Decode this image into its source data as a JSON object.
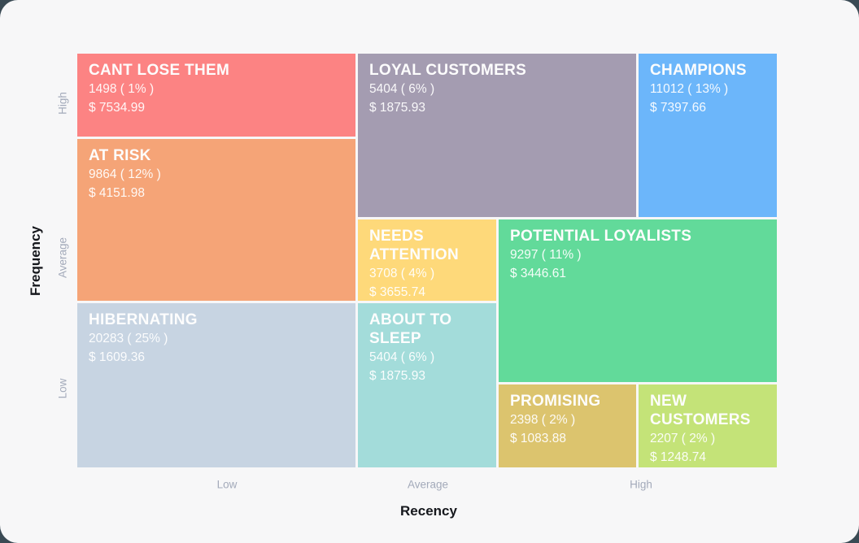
{
  "axes": {
    "y_title": "Frequency",
    "x_title": "Recency",
    "y_ticks": [
      "High",
      "Average",
      "Low"
    ],
    "x_ticks": [
      "Low",
      "Average",
      "High"
    ]
  },
  "chart_data": {
    "type": "heatmap",
    "subtype": "rfm-segment-grid",
    "xlabel": "Recency",
    "ylabel": "Frequency",
    "x_ticks": [
      "Low",
      "Average",
      "High"
    ],
    "y_ticks": [
      "High",
      "Average",
      "Low"
    ],
    "grid": "off",
    "legend": "none",
    "segments": [
      {
        "name": "CANT LOSE THEM",
        "count": 1498,
        "percent": 1,
        "monetary": 7534.99,
        "count_text": "1498 ( 1% )",
        "value_text": "$ 7534.99",
        "color": "#fc8383",
        "recency": "Low",
        "frequency": "High"
      },
      {
        "name": "LOYAL CUSTOMERS",
        "count": 5404,
        "percent": 6,
        "monetary": 1875.93,
        "count_text": "5404 ( 6% )",
        "value_text": "$ 1875.93",
        "color": "#a49cb1",
        "recency": "Average",
        "frequency": "High"
      },
      {
        "name": "CHAMPIONS",
        "count": 11012,
        "percent": 13,
        "monetary": 7397.66,
        "count_text": "11012 ( 13% )",
        "value_text": "$ 7397.66",
        "color": "#6cb6fa",
        "recency": "High",
        "frequency": "High"
      },
      {
        "name": "AT RISK",
        "count": 9864,
        "percent": 12,
        "monetary": 4151.98,
        "count_text": "9864 ( 12% )",
        "value_text": "$ 4151.98",
        "color": "#f5a477",
        "recency": "Low",
        "frequency": "Average"
      },
      {
        "name": "NEEDS ATTENTION",
        "count": 3708,
        "percent": 4,
        "monetary": 3655.74,
        "count_text": "3708 ( 4% )",
        "value_text": "$ 3655.74",
        "color": "#fed97a",
        "recency": "Average",
        "frequency": "Average"
      },
      {
        "name": "POTENTIAL LOYALISTS",
        "count": 9297,
        "percent": 11,
        "monetary": 3446.61,
        "count_text": "9297 ( 11% )",
        "value_text": "$ 3446.61",
        "color": "#62da9a",
        "recency": "High",
        "frequency": "Average"
      },
      {
        "name": "HIBERNATING",
        "count": 20283,
        "percent": 25,
        "monetary": 1609.36,
        "count_text": "20283 ( 25% )",
        "value_text": "$ 1609.36",
        "color": "#c7d4e2",
        "recency": "Low",
        "frequency": "Low"
      },
      {
        "name": "ABOUT TO SLEEP",
        "count": 5404,
        "percent": 6,
        "monetary": 1875.93,
        "count_text": "5404 ( 6% )",
        "value_text": "$ 1875.93",
        "color": "#a3dcda",
        "recency": "Average",
        "frequency": "Low"
      },
      {
        "name": "PROMISING",
        "count": 2398,
        "percent": 2,
        "monetary": 1083.88,
        "count_text": "2398 ( 2% )",
        "value_text": "$ 1083.88",
        "color": "#dcc46e",
        "recency": "High",
        "frequency": "Low"
      },
      {
        "name": "NEW CUSTOMERS",
        "count": 2207,
        "percent": 2,
        "monetary": 1248.74,
        "count_text": "2207 ( 2% )",
        "value_text": "$ 1248.74",
        "color": "#c4e378",
        "recency": "High",
        "frequency": "Low"
      }
    ]
  }
}
